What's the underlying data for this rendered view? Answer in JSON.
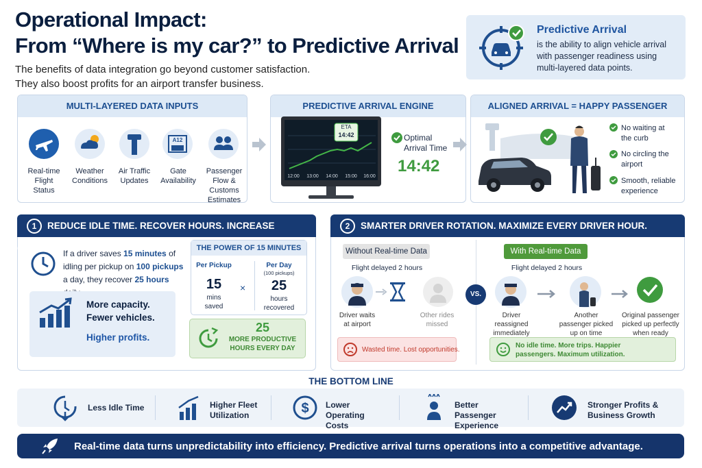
{
  "header": {
    "title_lines": [
      "Operational Impact:",
      "From “Where is my car?” to Predictive Arrival"
    ],
    "subtitle_lines": [
      "The benefits of data integration go beyond customer satisfaction.",
      "They also boost profits for an airport transfer business."
    ]
  },
  "definition": {
    "title": "Predictive Arrival",
    "text": "is the ability to align vehicle arrival with passenger readiness using multi-layered data points."
  },
  "panels": {
    "inputs": {
      "title": "MULTI-LAYERED DATA INPUTS",
      "items": [
        "Real-time Flight Status",
        "Weather Conditions",
        "Air Traffic Updates",
        "Gate Availability",
        "Passenger Flow & Customs Estimates"
      ],
      "gate_sign": "A12"
    },
    "engine": {
      "title": "PREDICTIVE ARRIVAL ENGINE",
      "eta_label": "ETA",
      "eta_time": "14:42",
      "time_axis": [
        "12:00",
        "13:00",
        "14:00",
        "15:00",
        "16:00"
      ],
      "result_label": "Optimal Arrival Time",
      "result_time": "14:42"
    },
    "aligned": {
      "title": "ALIGNED ARRIVAL = HAPPY PASSENGER",
      "points": [
        "No waiting at the curb",
        "No circling the airport",
        "Smooth, reliable experience"
      ]
    }
  },
  "section_1": {
    "number": "1",
    "title": "REDUCE IDLE TIME. RECOVER HOURS. INCREASE CAPACITY.",
    "text_parts": [
      "If a driver saves ",
      "15 minutes",
      " of idling per pickup on ",
      "100 pickups",
      " a day, they recover ",
      "25 hours",
      " daily."
    ],
    "benefits": [
      "More capacity.",
      "Fewer vehicles.",
      "Higher profits."
    ],
    "power": {
      "title": "THE POWER OF 15 MINUTES",
      "per_pickup": {
        "heading": "Per Pickup",
        "value": "15",
        "unit": "mins saved"
      },
      "operator": "×",
      "per_day": {
        "heading": "Per Day",
        "note": "(100 pickups)",
        "value": "25",
        "unit": "hours recovered"
      }
    },
    "highlight": {
      "value": "25",
      "text": "MORE PRODUCTIVE HOURS EVERY DAY"
    }
  },
  "section_2": {
    "number": "2",
    "title": "SMARTER DRIVER ROTATION. MAXIMIZE EVERY DRIVER HOUR.",
    "without": {
      "label": "Without Real-time Data",
      "event": "Flight delayed 2 hours",
      "steps": [
        "Driver waits at airport",
        "Other rides missed"
      ],
      "result": "Wasted time. Lost opportunities."
    },
    "versus": "VS.",
    "with": {
      "label": "With Real-time Data",
      "event": "Flight delayed 2 hours",
      "steps": [
        "Driver reassigned immediately",
        "Another passenger picked up on time",
        "Original passenger picked up perfectly when ready"
      ],
      "result": "No idle time. More trips. Happier passengers. Maximum utilization."
    }
  },
  "bottom_line": {
    "title": "THE BOTTOM LINE",
    "items": [
      "Less Idle Time",
      "Higher Fleet Utilization",
      "Lower Operating Costs",
      "Better Passenger Experience",
      "Stronger Profits & Business Growth"
    ]
  },
  "banner": "Real-time data turns unpredictability into efficiency. Predictive arrival turns operations into a competitive advantage."
}
